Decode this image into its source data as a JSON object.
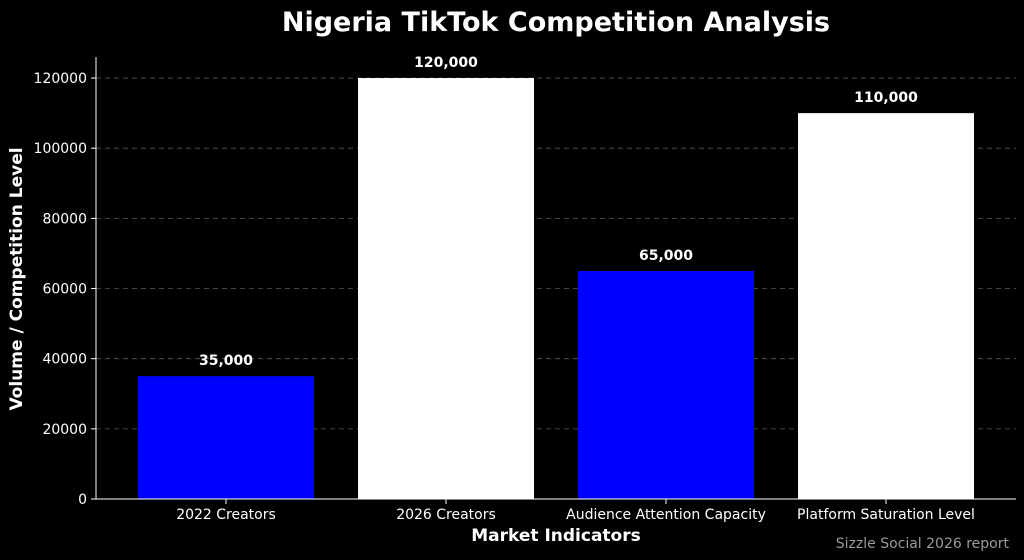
{
  "colors": {
    "background": "#000000",
    "text": "#ffffff",
    "grid": "#5a5a5a",
    "source_note": "#9a9a9a"
  },
  "chart_data": {
    "type": "bar",
    "title": "Nigeria TikTok Competition Analysis",
    "xlabel": "Market Indicators",
    "ylabel": "Volume / Competition Level",
    "categories": [
      "2022 Creators",
      "2026 Creators",
      "Audience Attention Capacity",
      "Platform Saturation Level"
    ],
    "values": [
      35000,
      120000,
      65000,
      110000
    ],
    "value_labels": [
      "35,000",
      "120,000",
      "65,000",
      "110,000"
    ],
    "bar_colors": [
      "#0000ff",
      "#ffffff",
      "#0000ff",
      "#ffffff"
    ],
    "ylim": [
      0,
      126000
    ],
    "yticks": [
      0,
      20000,
      40000,
      60000,
      80000,
      100000,
      120000
    ],
    "ytick_labels": [
      "0",
      "20000",
      "40000",
      "60000",
      "80000",
      "100000",
      "120000"
    ],
    "grid": "y-dashed",
    "legend": "none"
  },
  "footer": {
    "source": "Sizzle Social 2026 report"
  }
}
